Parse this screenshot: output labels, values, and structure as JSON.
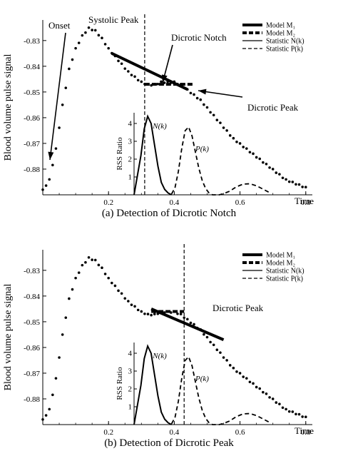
{
  "chart_data": [
    {
      "type": "scatter",
      "caption": "(a) Detection of Dicrotic Notch",
      "xlabel": "Time",
      "ylabel": "Blood volume pulse signal",
      "xlim": [
        0.0,
        0.82
      ],
      "ylim": [
        -0.89,
        -0.822
      ],
      "xticks": [
        0.2,
        0.4,
        0.6,
        0.8
      ],
      "xtick_labels": [
        "0.2",
        "0.4",
        "0.6",
        "0.8"
      ],
      "yticks": [
        -0.83,
        -0.84,
        -0.85,
        -0.86,
        -0.87,
        -0.88
      ],
      "ytick_labels": [
        "-0.83",
        "-0.84",
        "-0.85",
        "-0.86",
        "-0.87",
        "-0.88"
      ],
      "signal_x": [
        0.0,
        0.02,
        0.04,
        0.06,
        0.08,
        0.1,
        0.12,
        0.14,
        0.16,
        0.18,
        0.2,
        0.22,
        0.24,
        0.26,
        0.28,
        0.3,
        0.32,
        0.34,
        0.36,
        0.38,
        0.4,
        0.42,
        0.44,
        0.46,
        0.48,
        0.5,
        0.52,
        0.54,
        0.56,
        0.58,
        0.6,
        0.62,
        0.64,
        0.66,
        0.68,
        0.7,
        0.72,
        0.74,
        0.76,
        0.78,
        0.8
      ],
      "signal_y": [
        -0.888,
        -0.884,
        -0.872,
        -0.855,
        -0.841,
        -0.833,
        -0.828,
        -0.825,
        -0.826,
        -0.829,
        -0.833,
        -0.836,
        -0.839,
        -0.842,
        -0.844,
        -0.846,
        -0.847,
        -0.847,
        -0.846,
        -0.846,
        -0.846,
        -0.847,
        -0.849,
        -0.851,
        -0.853,
        -0.856,
        -0.859,
        -0.862,
        -0.865,
        -0.868,
        -0.87,
        -0.872,
        -0.874,
        -0.876,
        -0.878,
        -0.88,
        -0.882,
        -0.884,
        -0.885,
        -0.886,
        -0.887
      ],
      "onset_label": "Onset",
      "peak_label": "Systolic Peak",
      "peak_x": 0.31,
      "event_label": "Dicrotic Notch",
      "event_x": 0.31,
      "extra_label": "Dicrotic Peak",
      "model1": {
        "x": [
          0.21,
          0.44
        ],
        "y": [
          -0.835,
          -0.849
        ]
      },
      "model2": {
        "x": [
          0.31,
          0.46
        ],
        "y": [
          -0.847,
          -0.847
        ]
      },
      "legend": [
        "Model M₁",
        "Model M₂",
        "Statistic N(k)",
        "Statistic P(k)"
      ],
      "inset": {
        "ylabel": "RSS Ratio",
        "yticks": [
          1,
          2,
          3,
          4
        ],
        "ylim": [
          0,
          4.6
        ],
        "xlim": [
          0.27,
          0.68
        ],
        "N_label": "N(k)",
        "P_label": "P(k)",
        "N_x": [
          0.27,
          0.29,
          0.3,
          0.31,
          0.32,
          0.33,
          0.34,
          0.35,
          0.36,
          0.37,
          0.38
        ],
        "N_y": [
          0.0,
          2.2,
          3.7,
          4.4,
          4.0,
          2.8,
          1.6,
          0.7,
          0.3,
          0.1,
          0.0
        ],
        "P_x": [
          0.38,
          0.39,
          0.4,
          0.41,
          0.42,
          0.43,
          0.44,
          0.45,
          0.46,
          0.47,
          0.48,
          0.49,
          0.5,
          0.51,
          0.52,
          0.53,
          0.55,
          0.57,
          0.59,
          0.61,
          0.63,
          0.65,
          0.67
        ],
        "P_y": [
          0.05,
          0.4,
          1.3,
          2.6,
          3.6,
          3.8,
          3.3,
          2.4,
          1.5,
          0.8,
          0.35,
          0.1,
          0.0,
          0.0,
          0.0,
          0.05,
          0.2,
          0.45,
          0.6,
          0.62,
          0.5,
          0.3,
          0.1
        ]
      }
    },
    {
      "type": "scatter",
      "caption": "(b) Detection of Dicrotic Peak",
      "xlabel": "Time",
      "ylabel": "Blood volume pulse signal",
      "xlim": [
        0.0,
        0.82
      ],
      "ylim": [
        -0.89,
        -0.822
      ],
      "xticks": [
        0.2,
        0.4,
        0.6,
        0.8
      ],
      "xtick_labels": [
        "0.2",
        "0.4",
        "0.6",
        "0.8"
      ],
      "yticks": [
        -0.83,
        -0.84,
        -0.85,
        -0.86,
        -0.87,
        -0.88
      ],
      "ytick_labels": [
        "-0.83",
        "-0.84",
        "-0.85",
        "-0.86",
        "-0.87",
        "-0.88"
      ],
      "signal_x": [
        0.0,
        0.02,
        0.04,
        0.06,
        0.08,
        0.1,
        0.12,
        0.14,
        0.16,
        0.18,
        0.2,
        0.22,
        0.24,
        0.26,
        0.28,
        0.3,
        0.32,
        0.34,
        0.36,
        0.38,
        0.4,
        0.42,
        0.44,
        0.46,
        0.48,
        0.5,
        0.52,
        0.54,
        0.56,
        0.58,
        0.6,
        0.62,
        0.64,
        0.66,
        0.68,
        0.7,
        0.72,
        0.74,
        0.76,
        0.78,
        0.8
      ],
      "signal_y": [
        -0.888,
        -0.884,
        -0.872,
        -0.855,
        -0.841,
        -0.833,
        -0.828,
        -0.825,
        -0.826,
        -0.829,
        -0.833,
        -0.836,
        -0.839,
        -0.842,
        -0.844,
        -0.846,
        -0.847,
        -0.847,
        -0.846,
        -0.846,
        -0.846,
        -0.847,
        -0.849,
        -0.851,
        -0.853,
        -0.856,
        -0.859,
        -0.862,
        -0.865,
        -0.868,
        -0.87,
        -0.872,
        -0.874,
        -0.876,
        -0.878,
        -0.88,
        -0.882,
        -0.884,
        -0.885,
        -0.886,
        -0.887
      ],
      "onset_label": "",
      "peak_label": "",
      "peak_x": null,
      "event_label": "Dicrotic Peak",
      "event_x": 0.43,
      "extra_label": "",
      "model1": {
        "x": [
          0.33,
          0.55
        ],
        "y": [
          -0.845,
          -0.857
        ]
      },
      "model2": {
        "x": [
          0.33,
          0.43
        ],
        "y": [
          -0.846,
          -0.846
        ]
      },
      "legend": [
        "Model M₁",
        "Model M₂",
        "Statistic N(k)",
        "Statistic P(k)"
      ],
      "inset": {
        "ylabel": "RSS Ratio",
        "yticks": [
          1,
          2,
          3,
          4
        ],
        "ylim": [
          0,
          4.6
        ],
        "xlim": [
          0.27,
          0.68
        ],
        "N_label": "N(k)",
        "P_label": "P(k)",
        "N_x": [
          0.27,
          0.29,
          0.3,
          0.31,
          0.32,
          0.33,
          0.34,
          0.35,
          0.36,
          0.37,
          0.38
        ],
        "N_y": [
          0.0,
          2.2,
          3.7,
          4.4,
          4.0,
          2.8,
          1.6,
          0.7,
          0.3,
          0.1,
          0.0
        ],
        "P_x": [
          0.38,
          0.39,
          0.4,
          0.41,
          0.42,
          0.43,
          0.44,
          0.45,
          0.46,
          0.47,
          0.48,
          0.49,
          0.5,
          0.51,
          0.52,
          0.53,
          0.55,
          0.57,
          0.59,
          0.61,
          0.63,
          0.65,
          0.67
        ],
        "P_y": [
          0.05,
          0.4,
          1.3,
          2.6,
          3.6,
          3.8,
          3.3,
          2.4,
          1.5,
          0.8,
          0.35,
          0.1,
          0.0,
          0.0,
          0.0,
          0.05,
          0.2,
          0.45,
          0.6,
          0.62,
          0.5,
          0.3,
          0.1
        ]
      }
    }
  ]
}
